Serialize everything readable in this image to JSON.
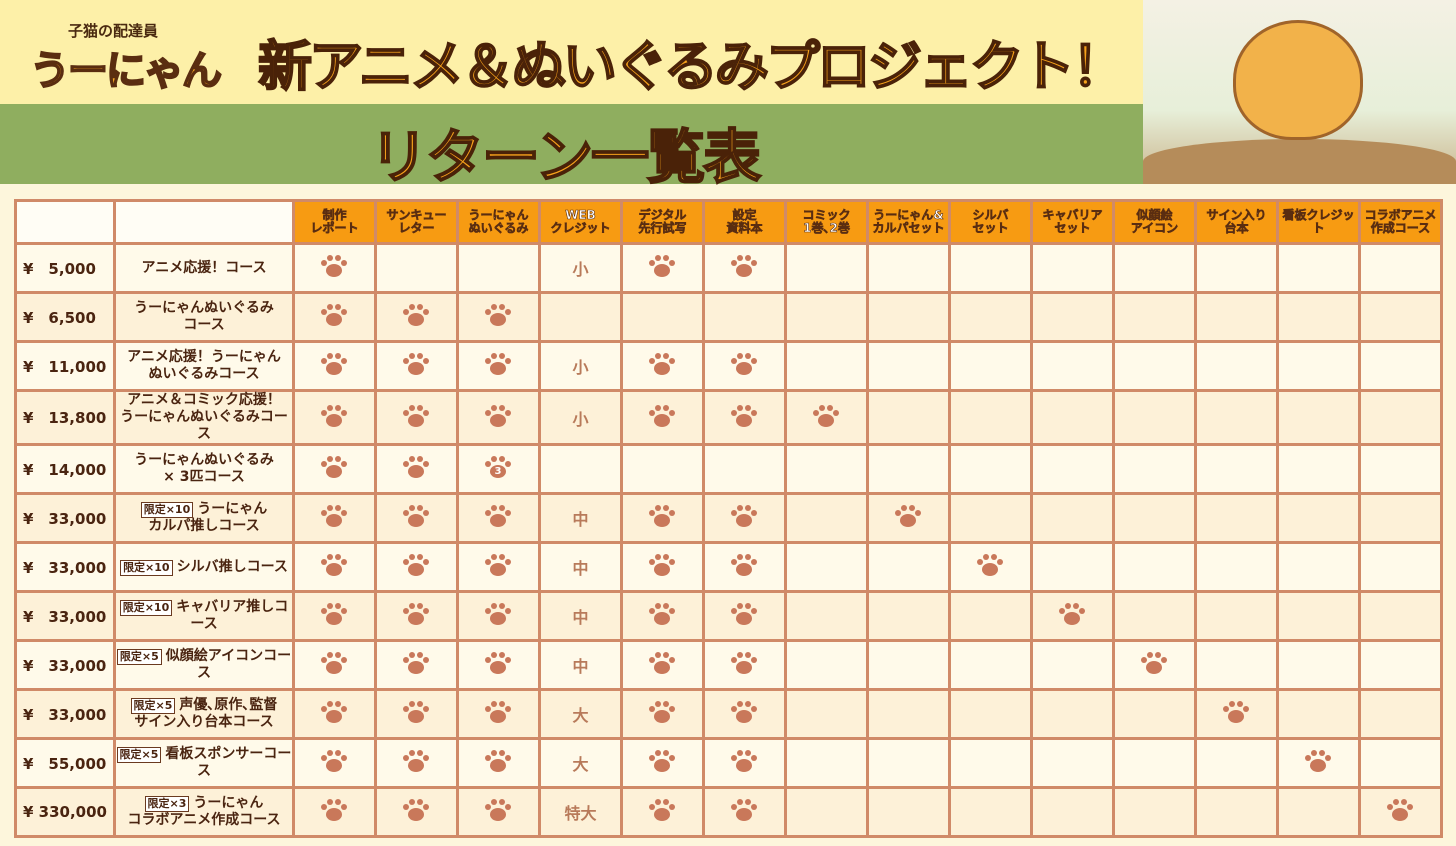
{
  "header": {
    "subtitle_small": "子猫の配達員",
    "logo": "うーにゃん",
    "title": "新アニメ＆ぬいぐるみプロジェクト！",
    "subtitle": "リターン一覧表"
  },
  "colors": {
    "header_orange": "#f79b12",
    "border": "#d08a68",
    "paw": "#c9785a",
    "band_green": "#8fae5f",
    "top_yellow": "#fdf0a8"
  },
  "columns": [
    "制作\nレポート",
    "サンキュー\nレター",
    "うーにゃん\nぬいぐるみ",
    "WEB\nクレジット",
    "デジタル\n先行試写",
    "設定\n資料本",
    "コミック\n1巻､2巻",
    "うーにゃん&\nカルパセット",
    "シルバ\nセット",
    "キャバリア\nセット",
    "似顔絵\nアイコン",
    "サイン入り\n台本",
    "看板クレジット",
    "コラボアニメ\n作成コース"
  ],
  "rows": [
    {
      "price": "¥　5,000",
      "limit": "",
      "name": "アニメ応援！コース",
      "cells": [
        "paw",
        "",
        "",
        "小",
        "paw",
        "paw",
        "",
        "",
        "",
        "",
        "",
        "",
        "",
        ""
      ]
    },
    {
      "price": "¥　6,500",
      "limit": "",
      "name": "うーにゃんぬいぐるみ\nコース",
      "cells": [
        "paw",
        "paw",
        "paw",
        "",
        "",
        "",
        "",
        "",
        "",
        "",
        "",
        "",
        "",
        ""
      ]
    },
    {
      "price": "¥　11,000",
      "limit": "",
      "name": "アニメ応援！うーにゃん\nぬいぐるみコース",
      "cells": [
        "paw",
        "paw",
        "paw",
        "小",
        "paw",
        "paw",
        "",
        "",
        "",
        "",
        "",
        "",
        "",
        ""
      ]
    },
    {
      "price": "¥　13,800",
      "limit": "",
      "name": "アニメ＆コミック応援！\nうーにゃんぬいぐるみコース",
      "cells": [
        "paw",
        "paw",
        "paw",
        "小",
        "paw",
        "paw",
        "paw",
        "",
        "",
        "",
        "",
        "",
        "",
        ""
      ]
    },
    {
      "price": "¥　14,000",
      "limit": "",
      "name": "うーにゃんぬいぐるみ\n× 3匹コース",
      "cells": [
        "paw",
        "paw",
        "paw3",
        "",
        "",
        "",
        "",
        "",
        "",
        "",
        "",
        "",
        "",
        ""
      ]
    },
    {
      "price": "¥　33,000",
      "limit": "限定×10",
      "name": "うーにゃん\nカルパ推しコース",
      "cells": [
        "paw",
        "paw",
        "paw",
        "中",
        "paw",
        "paw",
        "",
        "paw",
        "",
        "",
        "",
        "",
        "",
        ""
      ]
    },
    {
      "price": "¥　33,000",
      "limit": "限定×10",
      "name": "シルバ推しコース",
      "cells": [
        "paw",
        "paw",
        "paw",
        "中",
        "paw",
        "paw",
        "",
        "",
        "paw",
        "",
        "",
        "",
        "",
        ""
      ]
    },
    {
      "price": "¥　33,000",
      "limit": "限定×10",
      "name": "キャバリア推しコース",
      "cells": [
        "paw",
        "paw",
        "paw",
        "中",
        "paw",
        "paw",
        "",
        "",
        "",
        "paw",
        "",
        "",
        "",
        ""
      ]
    },
    {
      "price": "¥　33,000",
      "limit": "限定×5",
      "name": "似顔絵アイコンコース",
      "cells": [
        "paw",
        "paw",
        "paw",
        "中",
        "paw",
        "paw",
        "",
        "",
        "",
        "",
        "paw",
        "",
        "",
        ""
      ]
    },
    {
      "price": "¥　33,000",
      "limit": "限定×5",
      "name": "声優､原作､監督\nサイン入り台本コース",
      "cells": [
        "paw",
        "paw",
        "paw",
        "大",
        "paw",
        "paw",
        "",
        "",
        "",
        "",
        "",
        "paw",
        "",
        ""
      ]
    },
    {
      "price": "¥　55,000",
      "limit": "限定×5",
      "name": "看板スポンサーコース",
      "cells": [
        "paw",
        "paw",
        "paw",
        "大",
        "paw",
        "paw",
        "",
        "",
        "",
        "",
        "",
        "",
        "paw",
        ""
      ]
    },
    {
      "price": "¥ 330,000",
      "limit": "限定×3",
      "name": "うーにゃん\nコラボアニメ作成コース",
      "cells": [
        "paw",
        "paw",
        "paw",
        "特大",
        "paw",
        "paw",
        "",
        "",
        "",
        "",
        "",
        "",
        "",
        "paw"
      ]
    }
  ]
}
